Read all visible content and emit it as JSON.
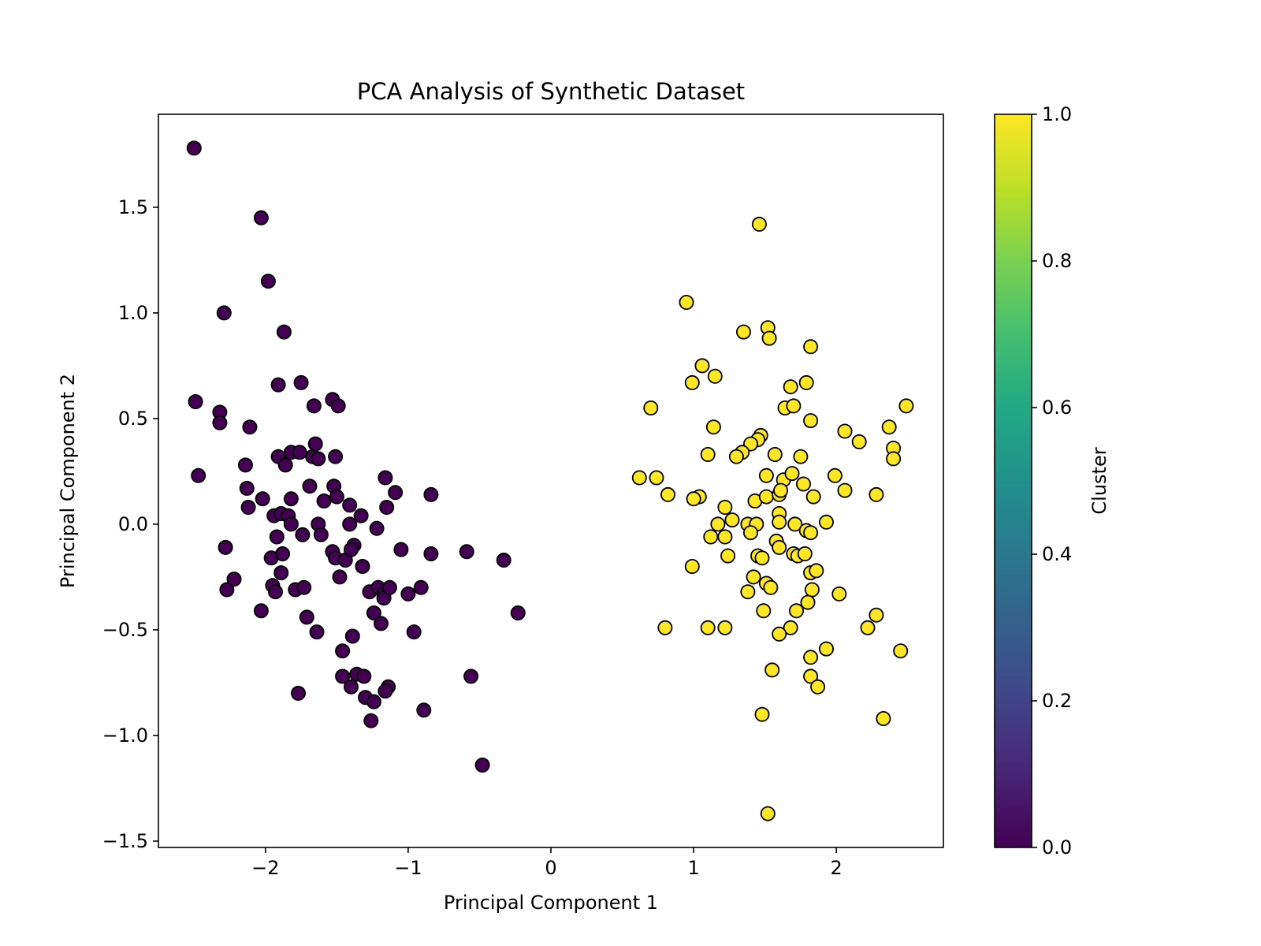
{
  "chart_data": {
    "type": "scatter",
    "title": "PCA Analysis of Synthetic Dataset",
    "xlabel": "Principal Component 1",
    "ylabel": "Principal Component 2",
    "xlim": [
      -2.75,
      2.75
    ],
    "ylim": [
      -1.53,
      1.94
    ],
    "xticks": [
      {
        "value": -2,
        "label": "−2"
      },
      {
        "value": -1,
        "label": "−1"
      },
      {
        "value": 0,
        "label": "0"
      },
      {
        "value": 1,
        "label": "1"
      },
      {
        "value": 2,
        "label": "2"
      }
    ],
    "yticks": [
      {
        "value": -1.5,
        "label": "−1.5"
      },
      {
        "value": -1.0,
        "label": "−1.0"
      },
      {
        "value": -0.5,
        "label": "−0.5"
      },
      {
        "value": 0.0,
        "label": "0.0"
      },
      {
        "value": 0.5,
        "label": "0.5"
      },
      {
        "value": 1.0,
        "label": "1.0"
      },
      {
        "value": 1.5,
        "label": "1.5"
      }
    ],
    "grid": false,
    "colorbar": {
      "label": "Cluster",
      "range": [
        0.0,
        1.0
      ],
      "colormap": "viridis",
      "ticks": [
        {
          "value": 0.0,
          "label": "0.0"
        },
        {
          "value": 0.2,
          "label": "0.2"
        },
        {
          "value": 0.4,
          "label": "0.4"
        },
        {
          "value": 0.6,
          "label": "0.6"
        },
        {
          "value": 0.8,
          "label": "0.8"
        },
        {
          "value": 1.0,
          "label": "1.0"
        }
      ]
    },
    "colors": {
      "cluster_0": "#440154",
      "cluster_1": "#fde725",
      "edge": "#000000"
    },
    "series": [
      {
        "cluster": 0,
        "points": [
          [
            -2.5,
            1.78
          ],
          [
            -2.03,
            1.45
          ],
          [
            -1.98,
            1.15
          ],
          [
            -2.29,
            1.0
          ],
          [
            -1.87,
            0.91
          ],
          [
            -2.49,
            0.58
          ],
          [
            -2.32,
            0.53
          ],
          [
            -2.32,
            0.48
          ],
          [
            -2.11,
            0.46
          ],
          [
            -1.91,
            0.66
          ],
          [
            -1.75,
            0.67
          ],
          [
            -1.66,
            0.56
          ],
          [
            -1.53,
            0.59
          ],
          [
            -1.49,
            0.56
          ],
          [
            -2.47,
            0.23
          ],
          [
            -2.14,
            0.28
          ],
          [
            -2.13,
            0.17
          ],
          [
            -2.02,
            0.12
          ],
          [
            -2.12,
            0.08
          ],
          [
            -1.91,
            0.32
          ],
          [
            -1.86,
            0.28
          ],
          [
            -1.82,
            0.34
          ],
          [
            -1.76,
            0.34
          ],
          [
            -1.67,
            0.32
          ],
          [
            -1.65,
            0.38
          ],
          [
            -1.63,
            0.31
          ],
          [
            -1.51,
            0.32
          ],
          [
            -1.69,
            0.18
          ],
          [
            -1.59,
            0.11
          ],
          [
            -1.52,
            0.18
          ],
          [
            -1.5,
            0.13
          ],
          [
            -1.41,
            0.09
          ],
          [
            -1.33,
            0.04
          ],
          [
            -1.16,
            0.22
          ],
          [
            -1.09,
            0.15
          ],
          [
            -1.15,
            0.08
          ],
          [
            -0.84,
            0.14
          ],
          [
            -1.82,
            0.12
          ],
          [
            -1.94,
            0.04
          ],
          [
            -1.89,
            0.05
          ],
          [
            -1.84,
            0.04
          ],
          [
            -1.82,
            0.0
          ],
          [
            -1.63,
            0.0
          ],
          [
            -1.41,
            0.0
          ],
          [
            -1.22,
            -0.02
          ],
          [
            -1.92,
            -0.06
          ],
          [
            -1.74,
            -0.05
          ],
          [
            -1.61,
            -0.05
          ],
          [
            -1.96,
            -0.16
          ],
          [
            -1.88,
            -0.14
          ],
          [
            -1.53,
            -0.13
          ],
          [
            -1.51,
            -0.16
          ],
          [
            -1.44,
            -0.17
          ],
          [
            -1.38,
            -0.1
          ],
          [
            -1.4,
            -0.12
          ],
          [
            -1.05,
            -0.12
          ],
          [
            -0.84,
            -0.14
          ],
          [
            -0.59,
            -0.13
          ],
          [
            -0.33,
            -0.17
          ],
          [
            -2.28,
            -0.11
          ],
          [
            -2.22,
            -0.26
          ],
          [
            -2.27,
            -0.31
          ],
          [
            -1.89,
            -0.23
          ],
          [
            -1.95,
            -0.29
          ],
          [
            -1.93,
            -0.32
          ],
          [
            -1.79,
            -0.31
          ],
          [
            -1.73,
            -0.3
          ],
          [
            -1.48,
            -0.25
          ],
          [
            -1.32,
            -0.2
          ],
          [
            -1.27,
            -0.32
          ],
          [
            -1.21,
            -0.3
          ],
          [
            -1.17,
            -0.33
          ],
          [
            -1.17,
            -0.35
          ],
          [
            -1.13,
            -0.3
          ],
          [
            -1.0,
            -0.33
          ],
          [
            -0.91,
            -0.3
          ],
          [
            -2.03,
            -0.41
          ],
          [
            -1.71,
            -0.44
          ],
          [
            -1.64,
            -0.51
          ],
          [
            -1.24,
            -0.42
          ],
          [
            -1.19,
            -0.47
          ],
          [
            -0.96,
            -0.51
          ],
          [
            -0.23,
            -0.42
          ],
          [
            -1.39,
            -0.53
          ],
          [
            -1.46,
            -0.6
          ],
          [
            -1.46,
            -0.72
          ],
          [
            -1.36,
            -0.71
          ],
          [
            -1.31,
            -0.72
          ],
          [
            -1.4,
            -0.77
          ],
          [
            -1.3,
            -0.82
          ],
          [
            -1.24,
            -0.84
          ],
          [
            -1.14,
            -0.77
          ],
          [
            -1.16,
            -0.79
          ],
          [
            -1.77,
            -0.8
          ],
          [
            -0.56,
            -0.72
          ],
          [
            -0.89,
            -0.88
          ],
          [
            -1.26,
            -0.93
          ],
          [
            -0.48,
            -1.14
          ]
        ]
      },
      {
        "cluster": 1,
        "points": [
          [
            1.46,
            1.42
          ],
          [
            0.95,
            1.05
          ],
          [
            1.35,
            0.91
          ],
          [
            1.52,
            0.93
          ],
          [
            1.53,
            0.88
          ],
          [
            1.82,
            0.84
          ],
          [
            1.06,
            0.75
          ],
          [
            0.99,
            0.67
          ],
          [
            1.15,
            0.7
          ],
          [
            1.68,
            0.65
          ],
          [
            1.79,
            0.67
          ],
          [
            1.64,
            0.55
          ],
          [
            1.7,
            0.56
          ],
          [
            0.7,
            0.55
          ],
          [
            1.82,
            0.49
          ],
          [
            1.14,
            0.46
          ],
          [
            1.47,
            0.42
          ],
          [
            1.45,
            0.4
          ],
          [
            1.4,
            0.38
          ],
          [
            1.34,
            0.34
          ],
          [
            1.3,
            0.32
          ],
          [
            1.1,
            0.33
          ],
          [
            1.57,
            0.33
          ],
          [
            1.75,
            0.32
          ],
          [
            2.06,
            0.44
          ],
          [
            2.16,
            0.39
          ],
          [
            2.37,
            0.46
          ],
          [
            2.49,
            0.56
          ],
          [
            2.4,
            0.36
          ],
          [
            2.4,
            0.31
          ],
          [
            0.62,
            0.22
          ],
          [
            0.74,
            0.22
          ],
          [
            1.51,
            0.23
          ],
          [
            1.63,
            0.21
          ],
          [
            1.69,
            0.24
          ],
          [
            1.77,
            0.19
          ],
          [
            1.99,
            0.23
          ],
          [
            0.82,
            0.14
          ],
          [
            1.04,
            0.13
          ],
          [
            1.0,
            0.12
          ],
          [
            1.43,
            0.11
          ],
          [
            1.51,
            0.13
          ],
          [
            1.6,
            0.14
          ],
          [
            1.61,
            0.16
          ],
          [
            1.84,
            0.13
          ],
          [
            2.06,
            0.16
          ],
          [
            2.28,
            0.14
          ],
          [
            1.22,
            0.08
          ],
          [
            1.6,
            0.05
          ],
          [
            1.6,
            0.01
          ],
          [
            1.17,
            0.0
          ],
          [
            1.27,
            0.02
          ],
          [
            1.38,
            0.0
          ],
          [
            1.44,
            0.0
          ],
          [
            1.71,
            0.0
          ],
          [
            1.93,
            0.01
          ],
          [
            1.12,
            -0.06
          ],
          [
            1.22,
            -0.06
          ],
          [
            1.4,
            -0.04
          ],
          [
            1.79,
            -0.03
          ],
          [
            1.82,
            -0.04
          ],
          [
            1.58,
            -0.08
          ],
          [
            1.6,
            -0.11
          ],
          [
            1.24,
            -0.15
          ],
          [
            1.45,
            -0.15
          ],
          [
            1.48,
            -0.16
          ],
          [
            1.7,
            -0.14
          ],
          [
            1.73,
            -0.15
          ],
          [
            1.78,
            -0.14
          ],
          [
            0.99,
            -0.2
          ],
          [
            1.42,
            -0.25
          ],
          [
            1.51,
            -0.28
          ],
          [
            1.54,
            -0.3
          ],
          [
            1.38,
            -0.32
          ],
          [
            1.82,
            -0.23
          ],
          [
            1.86,
            -0.22
          ],
          [
            1.83,
            -0.31
          ],
          [
            1.8,
            -0.37
          ],
          [
            1.72,
            -0.41
          ],
          [
            1.49,
            -0.41
          ],
          [
            2.02,
            -0.33
          ],
          [
            2.28,
            -0.43
          ],
          [
            0.8,
            -0.49
          ],
          [
            1.1,
            -0.49
          ],
          [
            1.22,
            -0.49
          ],
          [
            1.68,
            -0.49
          ],
          [
            1.6,
            -0.52
          ],
          [
            2.22,
            -0.49
          ],
          [
            1.82,
            -0.63
          ],
          [
            1.93,
            -0.59
          ],
          [
            2.45,
            -0.6
          ],
          [
            1.55,
            -0.69
          ],
          [
            1.82,
            -0.72
          ],
          [
            1.87,
            -0.77
          ],
          [
            1.48,
            -0.9
          ],
          [
            2.33,
            -0.92
          ],
          [
            1.52,
            -1.37
          ]
        ]
      }
    ]
  }
}
